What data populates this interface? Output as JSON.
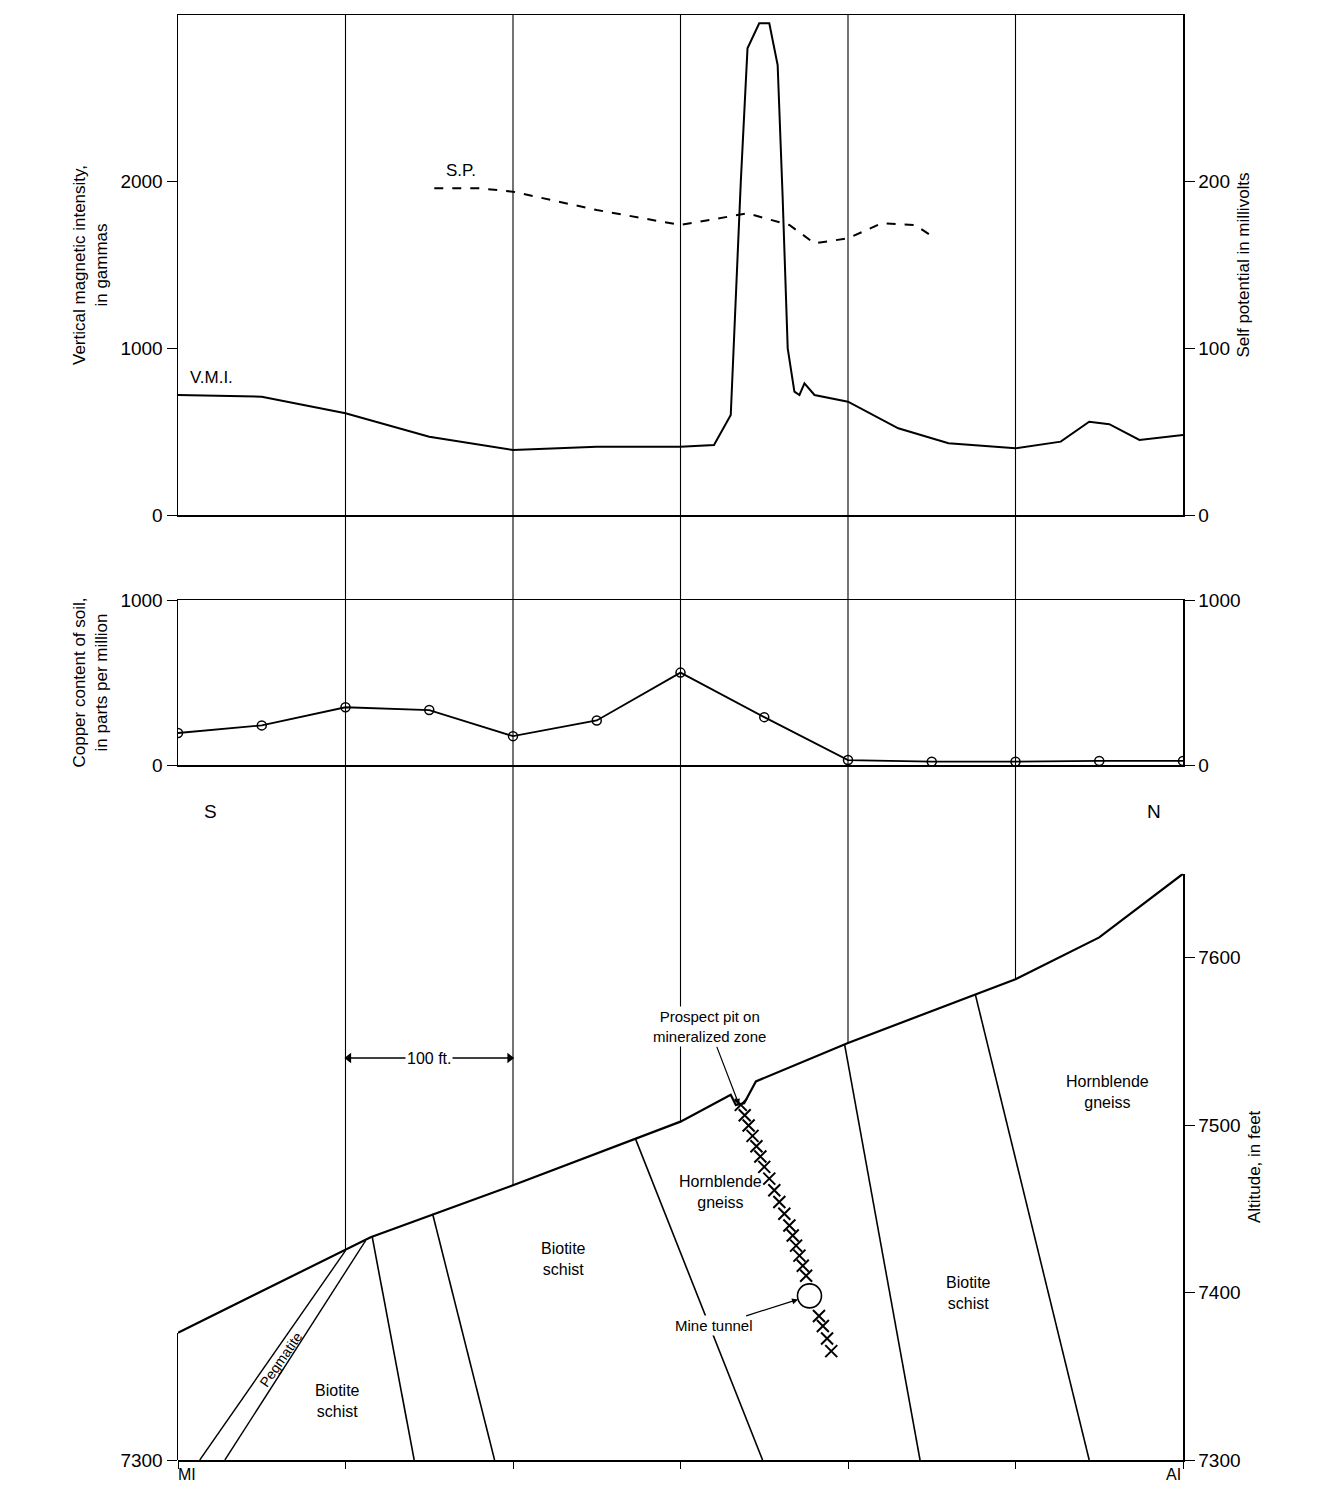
{
  "chart_data": [
    {
      "type": "line",
      "xlim": [
        0,
        600
      ],
      "xticks": [
        0,
        100,
        200,
        300,
        400,
        500,
        600
      ],
      "ylabel": "Vertical magnetic intensity, in gammas",
      "ylim": [
        0,
        3000
      ],
      "yticks": [
        0,
        1000,
        2000
      ],
      "y2label": "Self potential in millivolts",
      "y2lim": [
        0,
        300
      ],
      "y2ticks": [
        0,
        100,
        200
      ],
      "grid": "x",
      "tick_labels": "y",
      "series": [
        {
          "name": "V.M.I.",
          "color": "#000000",
          "line_style": "solid",
          "x": [
            0,
            50,
            100,
            150,
            200,
            250,
            300,
            320,
            330,
            333,
            336,
            340,
            347,
            353,
            358,
            361,
            364,
            368,
            371,
            374,
            380,
            400,
            430,
            460,
            500,
            527,
            544,
            556,
            574,
            600
          ],
          "values": [
            720,
            710,
            610,
            470,
            390,
            410,
            410,
            420,
            600,
            1300,
            2000,
            2800,
            2950,
            2950,
            2700,
            1900,
            1000,
            740,
            720,
            790,
            720,
            680,
            520,
            430,
            400,
            440,
            560,
            545,
            450,
            480
          ]
        },
        {
          "name": "S.P.",
          "color": "#000000",
          "line_style": "dash",
          "axis": "y2",
          "x": [
            153,
            180,
            200,
            250,
            300,
            340,
            365,
            380,
            400,
            420,
            440,
            452
          ],
          "values": [
            196,
            196,
            194,
            183,
            174,
            181,
            174,
            163,
            166,
            175,
            174,
            166
          ]
        }
      ]
    },
    {
      "type": "line",
      "xlim": [
        0,
        600
      ],
      "xticks": [
        0,
        100,
        200,
        300,
        400,
        500,
        600
      ],
      "ylabel": "Copper content of soil, in parts per million",
      "ylim": [
        0,
        1000
      ],
      "yticks": [
        0,
        1000
      ],
      "y2lim": [
        0,
        1000
      ],
      "y2ticks": [
        0,
        1000
      ],
      "grid": "x",
      "tick_labels": "y",
      "series": [
        {
          "color": "#000000",
          "line_style": "solid",
          "marker": "circle-open",
          "x": [
            0,
            50,
            100,
            150,
            200,
            250,
            300,
            350,
            400,
            450,
            500,
            550,
            600
          ],
          "values": [
            194,
            240,
            350,
            333,
            175,
            270,
            560,
            290,
            30,
            20,
            20,
            25,
            25
          ]
        }
      ]
    },
    {
      "type": "section",
      "xlim": [
        0,
        600
      ],
      "xticks": [
        0,
        100,
        200,
        300,
        400,
        500,
        600
      ],
      "ylim": [
        7300,
        7650
      ],
      "yticks": [
        7300,
        7400,
        7500,
        7600
      ],
      "ylabel": "Altitude, in feet",
      "y2lim": [
        7300,
        7376
      ],
      "y2ticks": [
        7300
      ],
      "tick_labels": "y",
      "end_labels": [
        "MI",
        "AI"
      ],
      "direction_labels": [
        "S",
        "N"
      ],
      "ground": {
        "x": [
          0,
          115,
          200,
          300,
          330,
          333,
          338,
          345,
          400,
          500,
          550,
          600
        ],
        "y": [
          7376,
          7433,
          7464,
          7502,
          7518,
          7512,
          7513,
          7526,
          7549,
          7587,
          7612,
          7650
        ]
      },
      "contacts": [
        {
          "x": [
            116,
            141
          ],
          "y": [
            7433,
            7300
          ]
        },
        {
          "x": [
            152,
            189
          ],
          "y": [
            7447,
            7300
          ]
        },
        {
          "x": [
            273,
            349
          ],
          "y": [
            7492,
            7300
          ]
        },
        {
          "x": [
            398,
            443
          ],
          "y": [
            7548,
            7300
          ]
        },
        {
          "x": [
            476,
            544
          ],
          "y": [
            7578,
            7300
          ]
        }
      ],
      "pegmatite": [
        {
          "x": [
            13,
            100
          ],
          "y": [
            7300,
            7425
          ]
        },
        {
          "x": [
            28,
            112
          ],
          "y": [
            7300,
            7431
          ]
        }
      ],
      "mineralized_zone": {
        "x": [
          336,
          350,
          365,
          375,
          378,
          385,
          390
        ],
        "y": [
          7512,
          7475,
          7440,
          7410,
          7398,
          7380,
          7365
        ]
      },
      "mine_tunnel": {
        "label": "Mine tunnel",
        "x": 377,
        "y": 7398
      },
      "prospect_pit": {
        "label": "Prospect pit on mineralized zone",
        "x": 335,
        "y": 7512
      },
      "rock_labels": [
        {
          "text": "Pegmatite",
          "x": 61,
          "y": 7360
        },
        {
          "text": "Biotite schist",
          "x": 95,
          "y": 7335
        },
        {
          "text": "Biotite schist",
          "x": 230,
          "y": 7420
        },
        {
          "text": "Hornblende gneiss",
          "x": 324,
          "y": 7460
        },
        {
          "text": "Biotite schist",
          "x": 472,
          "y": 7400
        },
        {
          "text": "Hornblende gneiss",
          "x": 555,
          "y": 7520
        }
      ],
      "scale_bar": {
        "label": "100 ft.",
        "x": [
          100,
          200
        ],
        "y": 7540
      }
    }
  ]
}
